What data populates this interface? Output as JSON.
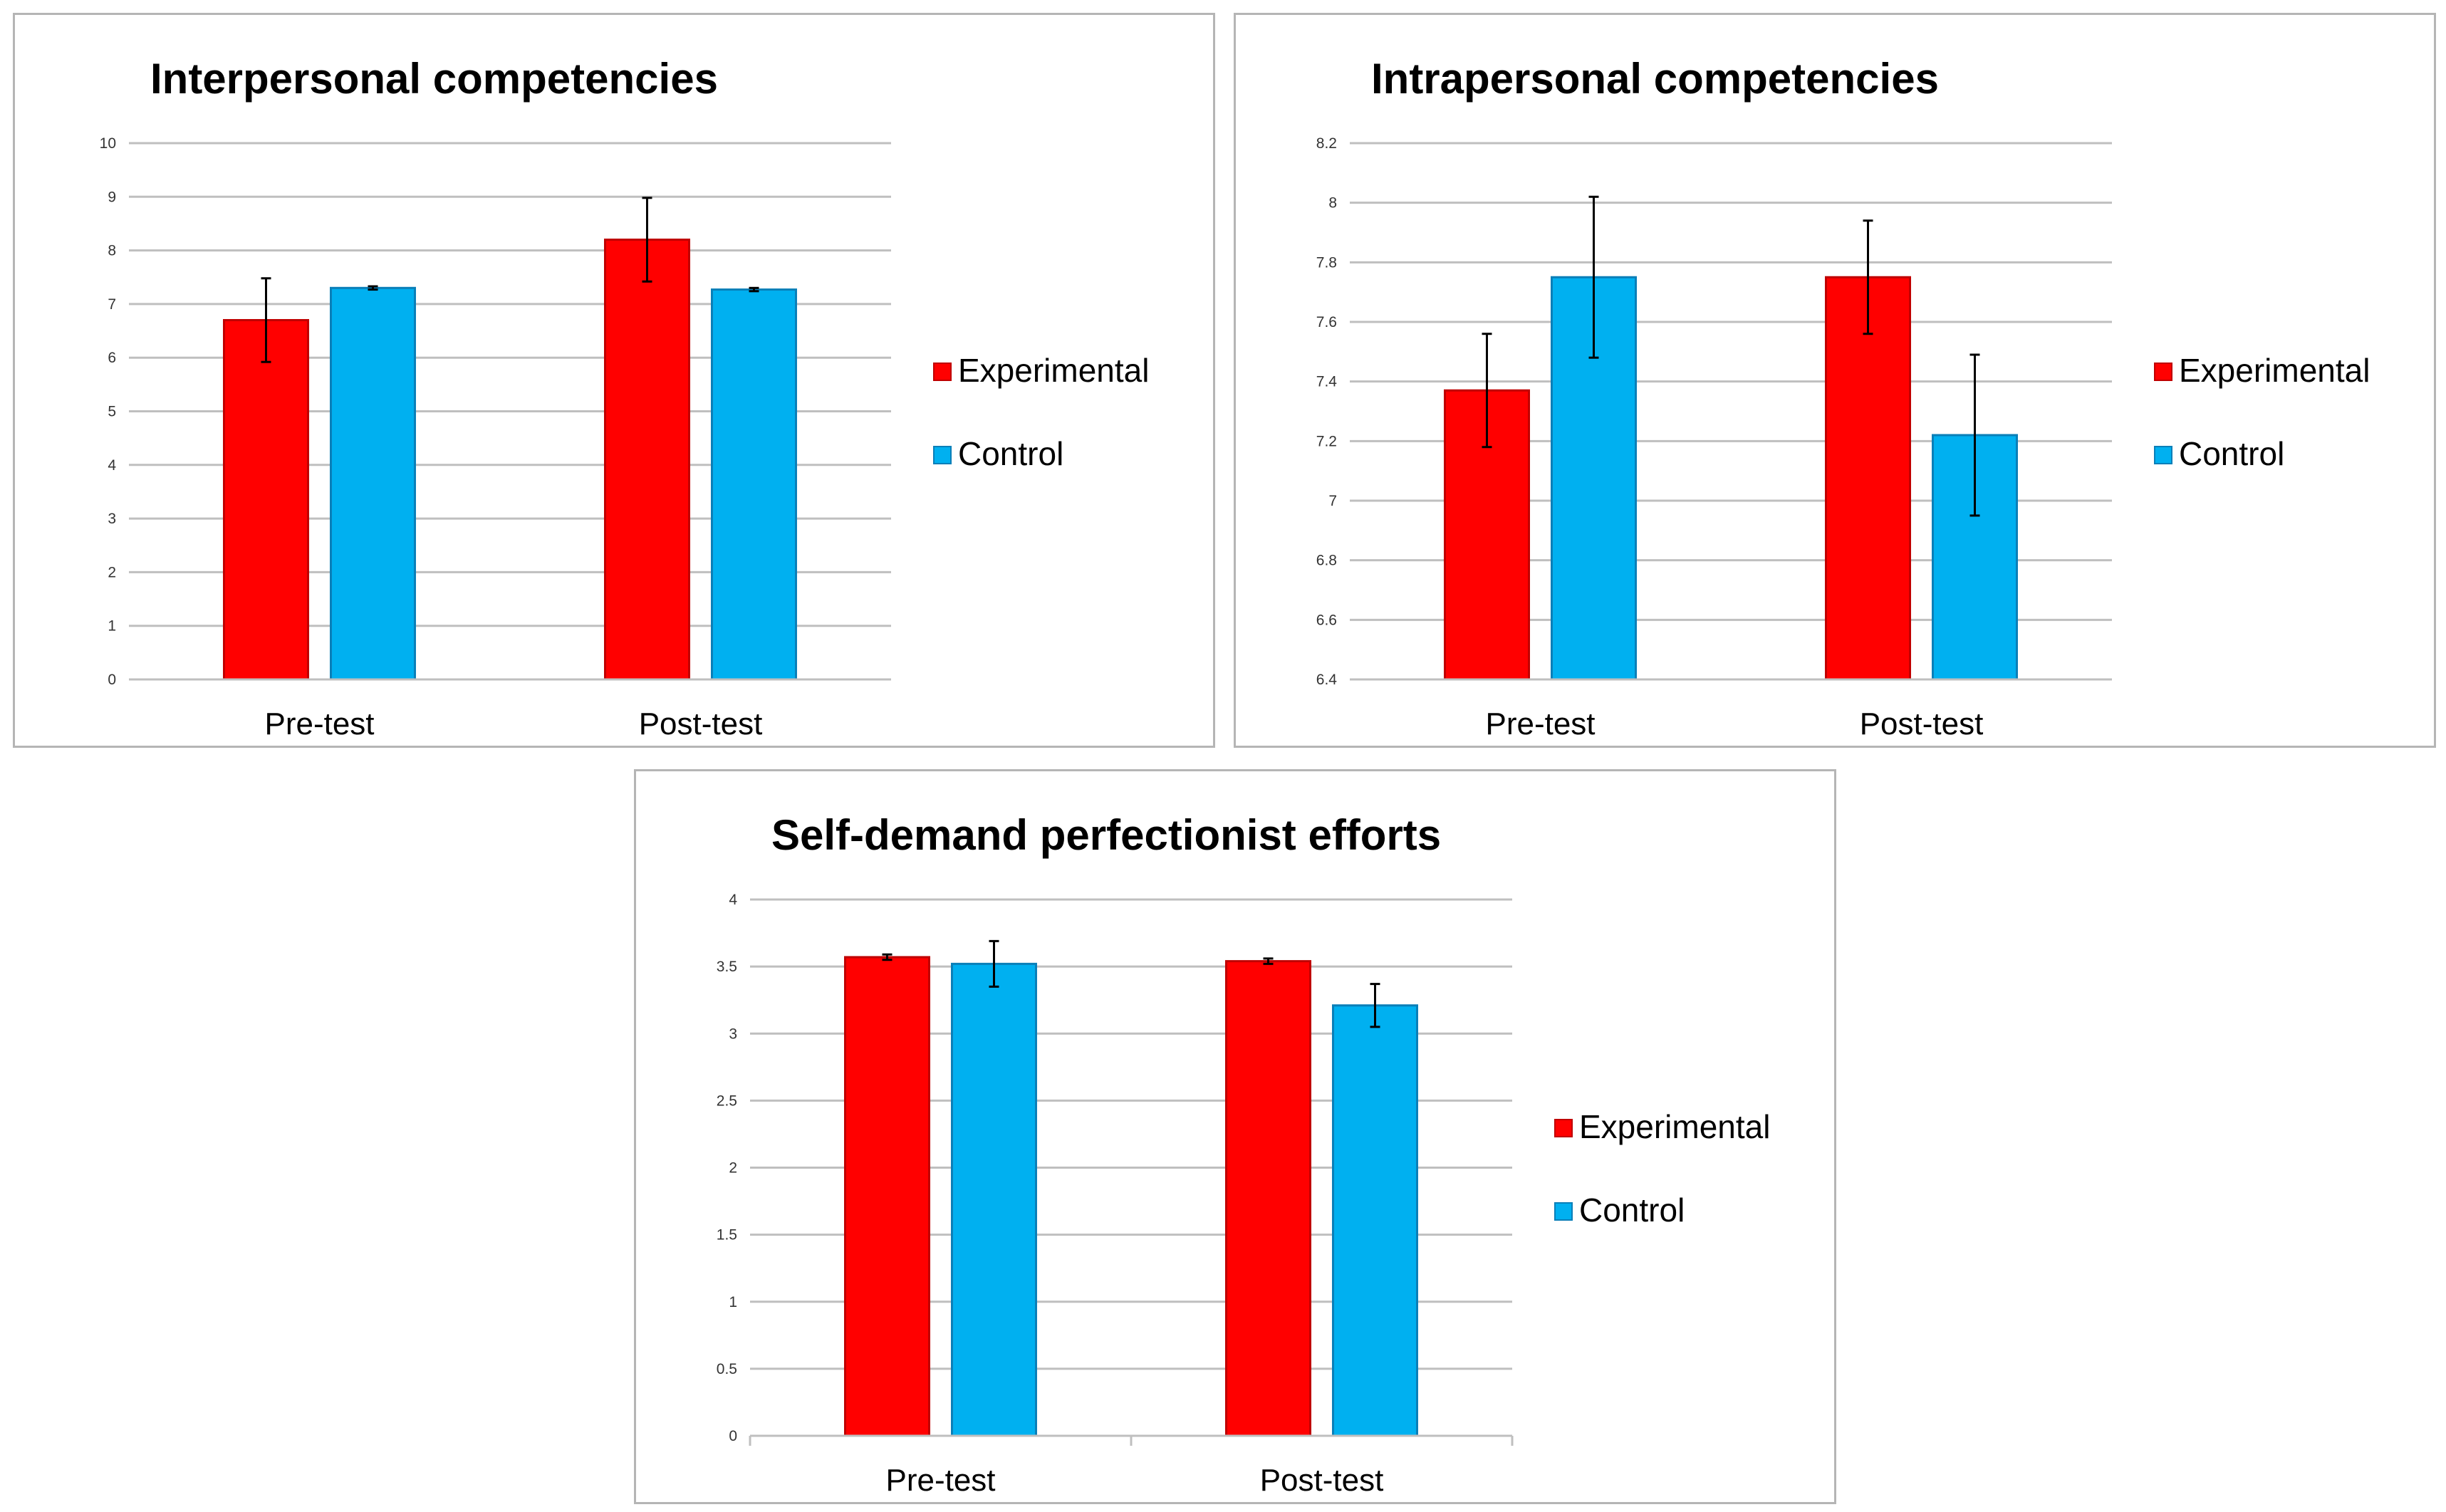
{
  "colors": {
    "experimental": "#ff0000",
    "control": "#00b0f0",
    "grid": "#bfbfbf",
    "error_bar": "#000000"
  },
  "legend": {
    "experimental": "Experimental",
    "control": "Control"
  },
  "chart_data": [
    {
      "type": "bar",
      "title": "Interpersonal competencies",
      "categories": [
        "Pre-test",
        "Post-test"
      ],
      "ylim": [
        0,
        10
      ],
      "yticks": [
        "0",
        "1",
        "2",
        "3",
        "4",
        "5",
        "6",
        "7",
        "8",
        "9",
        "10"
      ],
      "series": [
        {
          "name": "Experimental",
          "values": [
            6.7,
            8.2
          ],
          "errors": [
            0.78,
            0.78
          ]
        },
        {
          "name": "Control",
          "values": [
            7.3,
            7.27
          ],
          "errors": [
            0.03,
            0.03
          ]
        }
      ],
      "xlabel": "",
      "ylabel": "",
      "legend_position": "right"
    },
    {
      "type": "bar",
      "title": "Intrapersonal competencies",
      "categories": [
        "Pre-test",
        "Post-test"
      ],
      "ylim": [
        6.4,
        8.2
      ],
      "yticks": [
        "6.4",
        "6.6",
        "6.8",
        "7",
        "7.2",
        "7.4",
        "7.6",
        "7.8",
        "8",
        "8.2"
      ],
      "series": [
        {
          "name": "Experimental",
          "values": [
            7.37,
            7.75
          ],
          "errors": [
            0.19,
            0.19
          ]
        },
        {
          "name": "Control",
          "values": [
            7.75,
            7.22
          ],
          "errors": [
            0.27,
            0.27
          ]
        }
      ],
      "xlabel": "",
      "ylabel": "",
      "legend_position": "right"
    },
    {
      "type": "bar",
      "title": "Self-demand perfectionist efforts",
      "categories": [
        "Pre-test",
        "Post-test"
      ],
      "ylim": [
        0,
        4
      ],
      "yticks": [
        "0",
        "0.5",
        "1",
        "1.5",
        "2",
        "2.5",
        "3",
        "3.5",
        "4"
      ],
      "series": [
        {
          "name": "Experimental",
          "values": [
            3.57,
            3.54
          ],
          "errors": [
            0.02,
            0.02
          ]
        },
        {
          "name": "Control",
          "values": [
            3.52,
            3.21
          ],
          "errors": [
            0.17,
            0.16
          ]
        }
      ],
      "xlabel": "",
      "ylabel": "",
      "legend_position": "right"
    }
  ]
}
